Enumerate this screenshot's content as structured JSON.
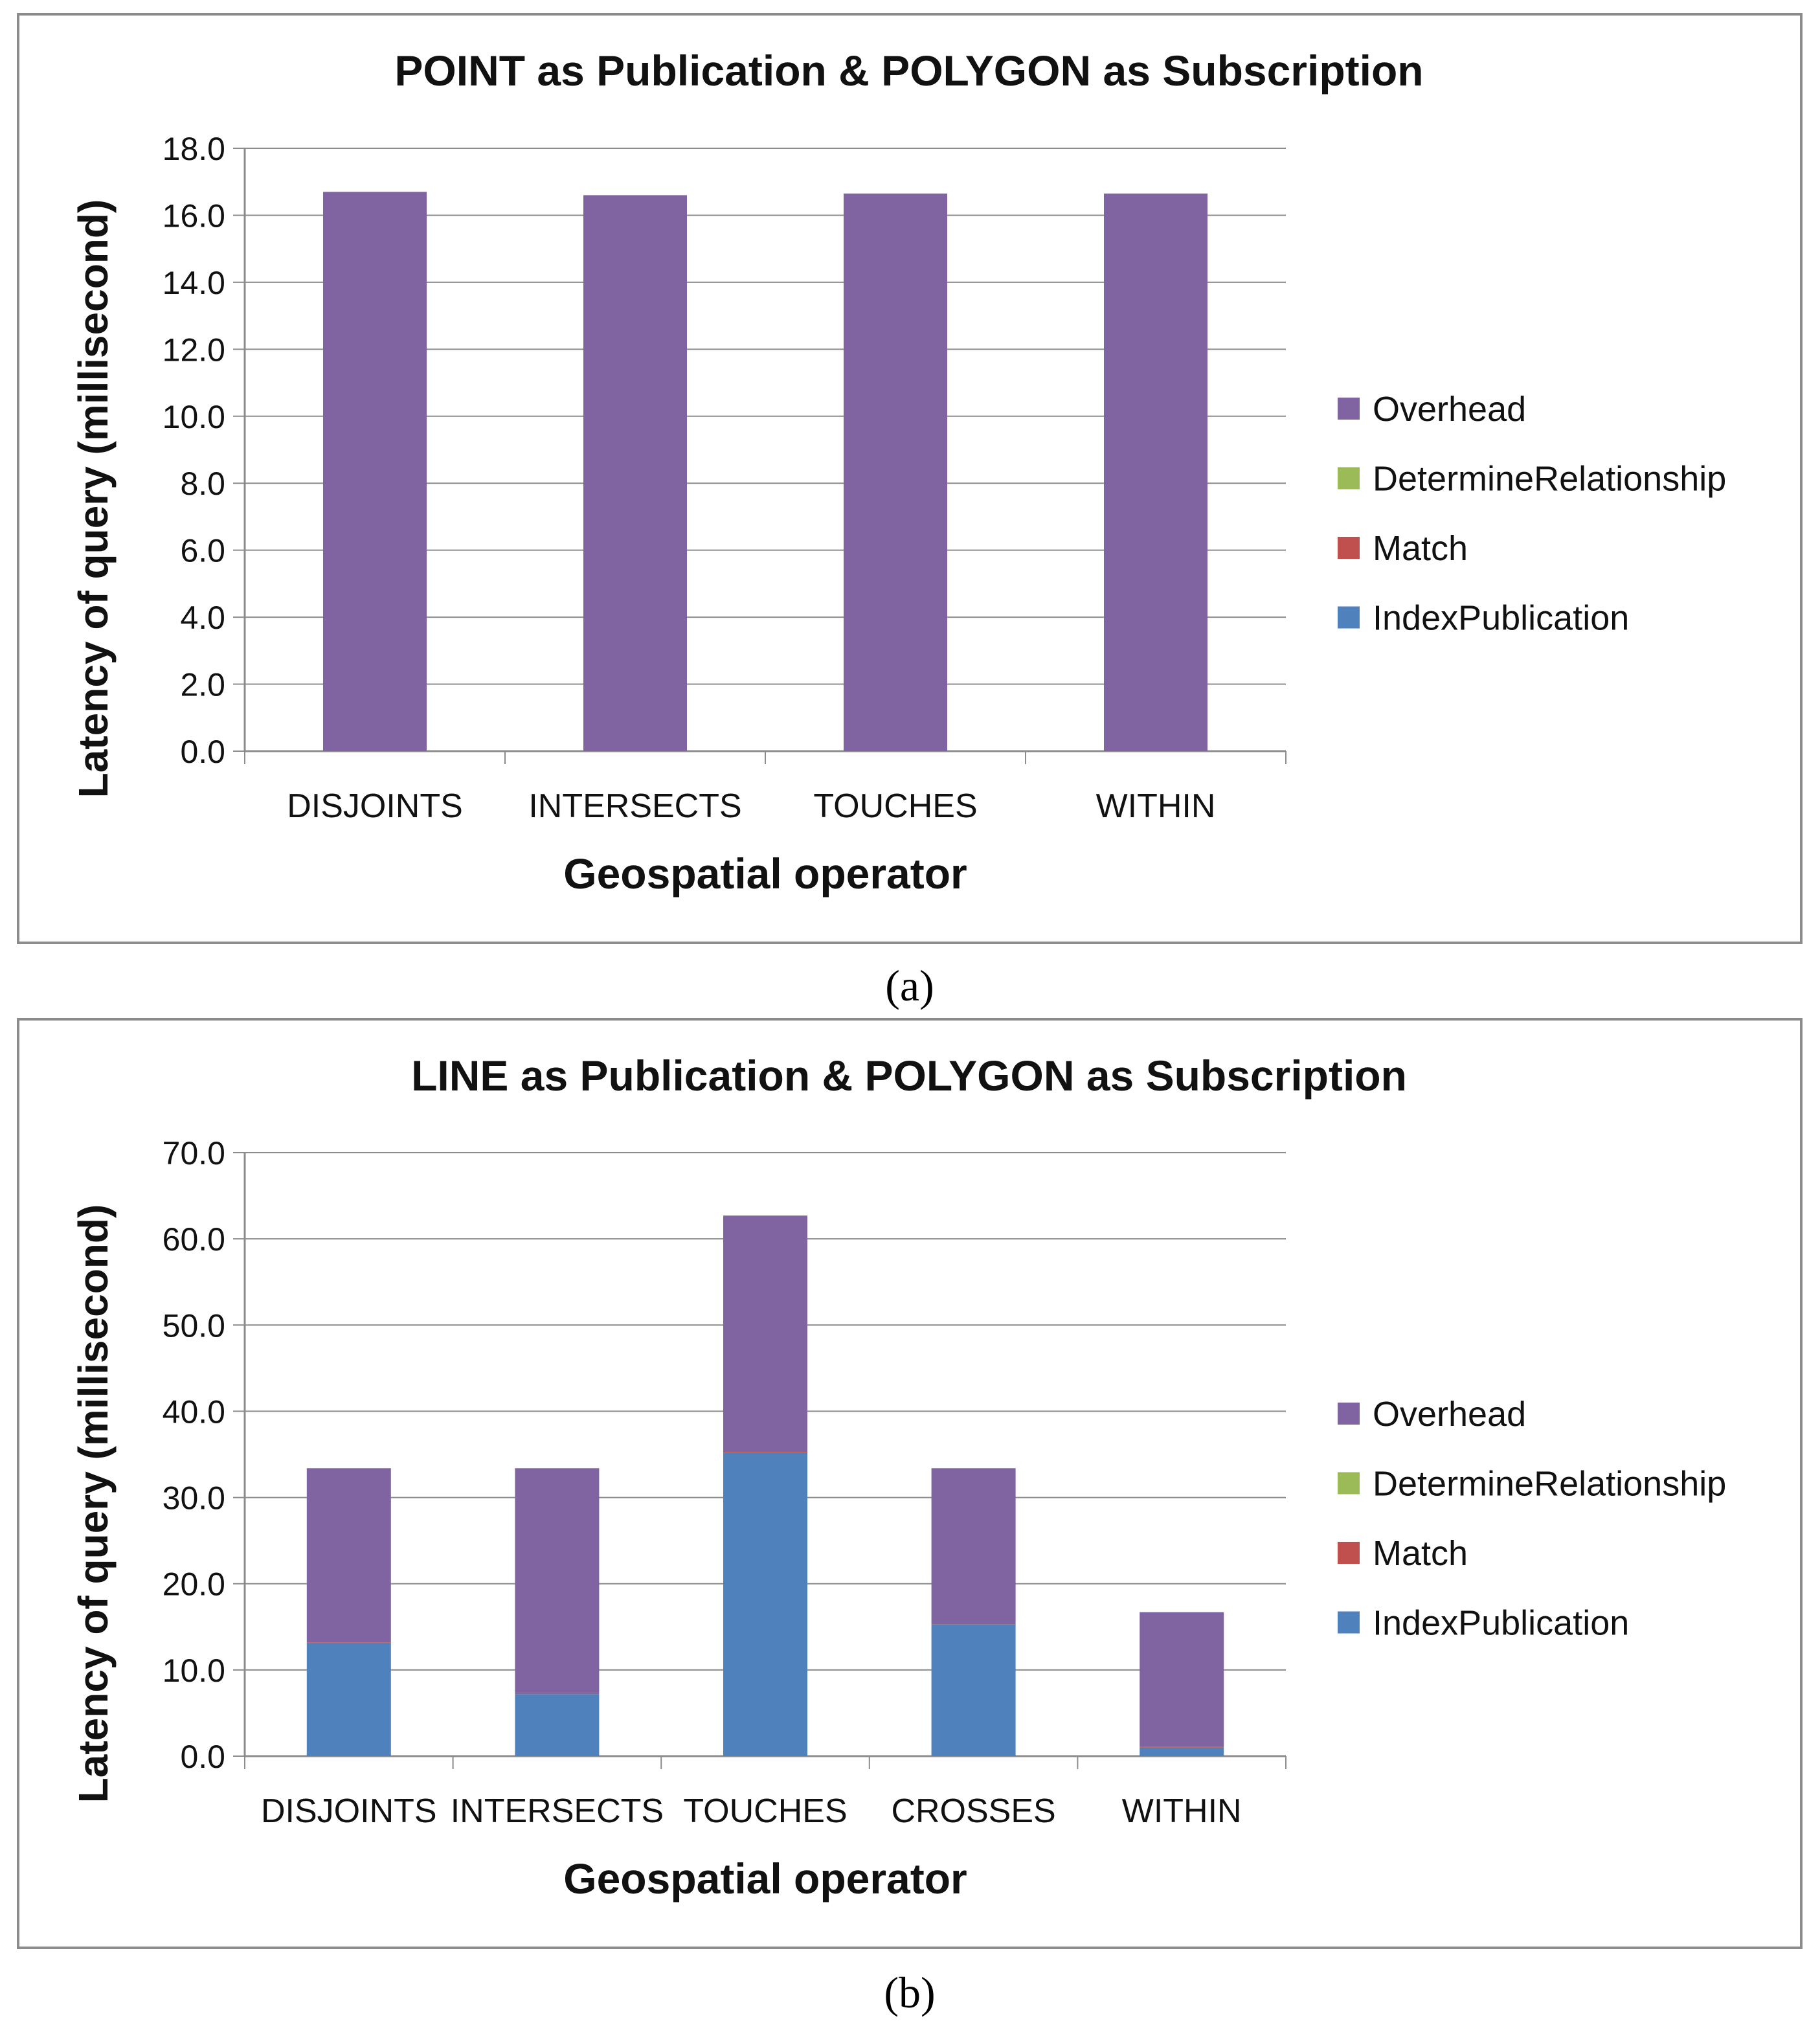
{
  "series_colors": {
    "Overhead": "#8064a2",
    "DetermineRelationship": "#9bbb59",
    "Match": "#c0504d",
    "IndexPublication": "#4f81bd"
  },
  "chart_data": [
    {
      "type": "bar",
      "stacked": true,
      "title": "POINT as Publication & POLYGON as Subscription",
      "xlabel": "Geospatial operator",
      "ylabel": "Latency of query (millisecond)",
      "ylim": [
        0,
        18
      ],
      "ystep": 2,
      "ytick_labels": [
        "0.0",
        "2.0",
        "4.0",
        "6.0",
        "8.0",
        "10.0",
        "12.0",
        "14.0",
        "16.0",
        "18.0"
      ],
      "categories": [
        "DISJOINTS",
        "INTERSECTS",
        "TOUCHES",
        "WITHIN"
      ],
      "legend_order": [
        "Overhead",
        "DetermineRelationship",
        "Match",
        "IndexPublication"
      ],
      "legend_position": "right",
      "series": [
        {
          "name": "IndexPublication",
          "values": [
            0,
            0,
            0,
            0
          ]
        },
        {
          "name": "Match",
          "values": [
            0,
            0,
            0,
            0
          ]
        },
        {
          "name": "DetermineRelationship",
          "values": [
            0,
            0,
            0,
            0
          ]
        },
        {
          "name": "Overhead",
          "values": [
            16.7,
            16.6,
            16.65,
            16.65
          ]
        }
      ],
      "caption": "(a)"
    },
    {
      "type": "bar",
      "stacked": true,
      "title": "LINE as Publication & POLYGON as Subscription",
      "xlabel": "Geospatial operator",
      "ylabel": "Latency of query (millisecond)",
      "ylim": [
        0,
        70
      ],
      "ystep": 10,
      "ytick_labels": [
        "0.0",
        "10.0",
        "20.0",
        "30.0",
        "40.0",
        "50.0",
        "60.0",
        "70.0"
      ],
      "categories": [
        "DISJOINTS",
        "INTERSECTS",
        "TOUCHES",
        "CROSSES",
        "WITHIN"
      ],
      "legend_order": [
        "Overhead",
        "DetermineRelationship",
        "Match",
        "IndexPublication"
      ],
      "legend_position": "right",
      "series": [
        {
          "name": "IndexPublication",
          "values": [
            13.1,
            7.2,
            35.2,
            15.3,
            1.0
          ]
        },
        {
          "name": "Match",
          "values": [
            0.1,
            0.1,
            0.1,
            0.1,
            0.1
          ]
        },
        {
          "name": "DetermineRelationship",
          "values": [
            0,
            0,
            0,
            0,
            0
          ]
        },
        {
          "name": "Overhead",
          "values": [
            20.2,
            26.1,
            27.4,
            18.0,
            15.6
          ]
        }
      ],
      "caption": "(b)"
    }
  ]
}
